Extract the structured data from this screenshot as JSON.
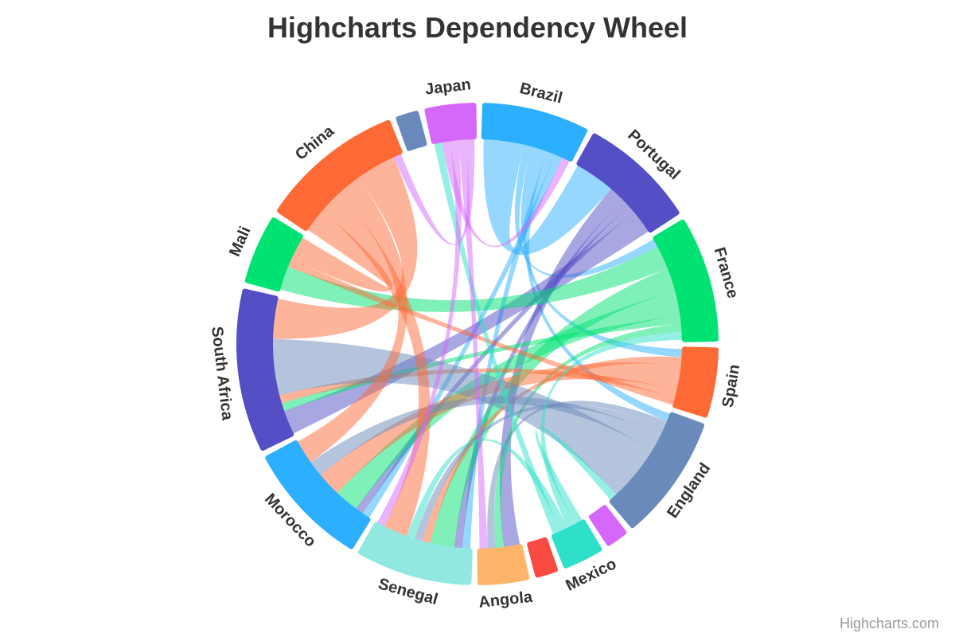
{
  "chart_data": {
    "type": "dependencywheel",
    "title": "Highcharts Dependency Wheel",
    "credits": "Highcharts.com",
    "nodes": [
      {
        "name": "Brazil",
        "color": "#2caffe"
      },
      {
        "name": "Portugal",
        "color": "#544fc5"
      },
      {
        "name": "France",
        "color": "#00e272"
      },
      {
        "name": "Spain",
        "color": "#fe6a35"
      },
      {
        "name": "England",
        "color": "#6b8abc"
      },
      {
        "name": "",
        "color": "#d568fb"
      },
      {
        "name": "Mexico",
        "color": "#2ee0ca"
      },
      {
        "name": "",
        "color": "#fa4b42"
      },
      {
        "name": "Angola",
        "color": "#feb56a"
      },
      {
        "name": "Senegal",
        "color": "#91e8e1"
      },
      {
        "name": "Morocco",
        "color": "#2caffe"
      },
      {
        "name": "South Africa",
        "color": "#544fc5"
      },
      {
        "name": "Mali",
        "color": "#00e272"
      },
      {
        "name": "China",
        "color": "#fe6a35"
      },
      {
        "name": "",
        "color": "#6b8abc"
      },
      {
        "name": "Japan",
        "color": "#d568fb"
      }
    ],
    "links": [
      {
        "from": "Brazil",
        "to": "Portugal",
        "weight": 5
      },
      {
        "from": "Brazil",
        "to": "France",
        "weight": 1
      },
      {
        "from": "Brazil",
        "to": "Spain",
        "weight": 1
      },
      {
        "from": "Brazil",
        "to": "England",
        "weight": 1
      },
      {
        "from": "Brazil",
        "to": "Senegal",
        "weight": 1
      },
      {
        "from": "Brazil",
        "to": "Morocco",
        "weight": 1
      },
      {
        "from": "Portugal",
        "to": "Angola",
        "weight": 2
      },
      {
        "from": "Portugal",
        "to": "Senegal",
        "weight": 1
      },
      {
        "from": "Portugal",
        "to": "Morocco",
        "weight": 1
      },
      {
        "from": "Portugal",
        "to": "South Africa",
        "weight": 3
      },
      {
        "from": "France",
        "to": "Mali",
        "weight": 3
      },
      {
        "from": "France",
        "to": "Senegal",
        "weight": 3
      },
      {
        "from": "France",
        "to": "Morocco",
        "weight": 3
      },
      {
        "from": "France",
        "to": "South Africa",
        "weight": 1
      },
      {
        "from": "France",
        "to": "Angola",
        "weight": 1
      },
      {
        "from": "Spain",
        "to": "Senegal",
        "weight": 1
      },
      {
        "from": "Spain",
        "to": "Morocco",
        "weight": 3
      },
      {
        "from": "Spain",
        "to": "South Africa",
        "weight": 1
      },
      {
        "from": "Spain",
        "to": "Mali",
        "weight": 1
      },
      {
        "from": "England",
        "to": "Angola",
        "weight": 1
      },
      {
        "from": "England",
        "to": "Senegal",
        "weight": 1
      },
      {
        "from": "England",
        "to": "Morocco",
        "weight": 2
      },
      {
        "from": "England",
        "to": "South Africa",
        "weight": 7
      },
      {
        "from": "Mexico",
        "to": "England",
        "weight": 1
      },
      {
        "from": "Mexico",
        "to": "France",
        "weight": 1
      },
      {
        "from": "Mexico",
        "to": "Senegal",
        "weight": 1
      },
      {
        "from": "Mexico",
        "to": "Japan",
        "weight": 1
      },
      {
        "from": "China",
        "to": "Mali",
        "weight": 3
      },
      {
        "from": "China",
        "to": "Senegal",
        "weight": 3
      },
      {
        "from": "China",
        "to": "Morocco",
        "weight": 3
      },
      {
        "from": "China",
        "to": "South Africa",
        "weight": 5
      },
      {
        "from": "Japan",
        "to": "Brazil",
        "weight": 1
      },
      {
        "from": "Japan",
        "to": "Senegal",
        "weight": 1
      },
      {
        "from": "Japan",
        "to": "Angola",
        "weight": 1
      },
      {
        "from": "Japan",
        "to": "China",
        "weight": 1
      }
    ]
  }
}
